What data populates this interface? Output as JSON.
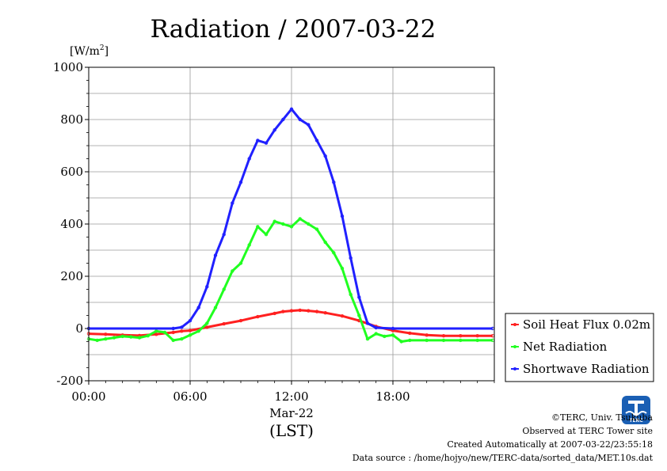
{
  "chart_data": {
    "type": "line",
    "title": "Radiation / 2007-03-22",
    "ylabel": "[W/m2]",
    "ylabel_base": "[W/m",
    "ylabel_sup": "2",
    "ylabel_close": "]",
    "xlabel": "(LST)",
    "date_label": "Mar-22",
    "ylim": [
      -200,
      1000
    ],
    "yticks": [
      -200,
      0,
      200,
      400,
      600,
      800,
      1000
    ],
    "xlim_hours": [
      0,
      24
    ],
    "xticks": [
      {
        "hour": 0,
        "label": "00:00"
      },
      {
        "hour": 6,
        "label": "06:00"
      },
      {
        "hour": 12,
        "label": "12:00"
      },
      {
        "hour": 18,
        "label": "18:00"
      }
    ],
    "grid": true,
    "legend_position": "right",
    "series": [
      {
        "name": "Soil Heat Flux 0.02m",
        "color": "#ff2020",
        "points": [
          [
            0,
            -20
          ],
          [
            1,
            -22
          ],
          [
            2,
            -25
          ],
          [
            3,
            -27
          ],
          [
            4,
            -22
          ],
          [
            5,
            -15
          ],
          [
            5.5,
            -10
          ],
          [
            6,
            -8
          ],
          [
            7,
            5
          ],
          [
            8,
            18
          ],
          [
            9,
            30
          ],
          [
            10,
            45
          ],
          [
            11,
            58
          ],
          [
            11.5,
            65
          ],
          [
            12,
            68
          ],
          [
            12.5,
            70
          ],
          [
            13,
            68
          ],
          [
            13.5,
            65
          ],
          [
            14,
            60
          ],
          [
            15,
            48
          ],
          [
            16,
            30
          ],
          [
            17,
            8
          ],
          [
            18,
            -8
          ],
          [
            19,
            -18
          ],
          [
            20,
            -25
          ],
          [
            21,
            -28
          ],
          [
            22,
            -28
          ],
          [
            23,
            -28
          ],
          [
            23.9,
            -28
          ]
        ]
      },
      {
        "name": "Net Radiation",
        "color": "#20ff20",
        "points": [
          [
            0,
            -40
          ],
          [
            0.5,
            -45
          ],
          [
            1,
            -40
          ],
          [
            1.5,
            -35
          ],
          [
            2,
            -30
          ],
          [
            2.5,
            -32
          ],
          [
            3,
            -35
          ],
          [
            3.5,
            -28
          ],
          [
            4,
            -10
          ],
          [
            4.5,
            -15
          ],
          [
            5,
            -45
          ],
          [
            5.5,
            -40
          ],
          [
            6,
            -25
          ],
          [
            6.5,
            -10
          ],
          [
            7,
            20
          ],
          [
            7.5,
            80
          ],
          [
            8,
            150
          ],
          [
            8.5,
            220
          ],
          [
            9,
            250
          ],
          [
            9.5,
            320
          ],
          [
            10,
            390
          ],
          [
            10.5,
            360
          ],
          [
            11,
            410
          ],
          [
            11.5,
            400
          ],
          [
            12,
            390
          ],
          [
            12.5,
            420
          ],
          [
            13,
            400
          ],
          [
            13.5,
            380
          ],
          [
            14,
            330
          ],
          [
            14.5,
            290
          ],
          [
            15,
            230
          ],
          [
            15.5,
            130
          ],
          [
            16,
            50
          ],
          [
            16.5,
            -40
          ],
          [
            17,
            -20
          ],
          [
            17.5,
            -30
          ],
          [
            18,
            -25
          ],
          [
            18.5,
            -50
          ],
          [
            19,
            -45
          ],
          [
            20,
            -45
          ],
          [
            21,
            -45
          ],
          [
            22,
            -45
          ],
          [
            23,
            -45
          ],
          [
            23.9,
            -45
          ]
        ]
      },
      {
        "name": "Shortwave Radiation",
        "color": "#2020ff",
        "points": [
          [
            0,
            0
          ],
          [
            5,
            0
          ],
          [
            5.5,
            5
          ],
          [
            6,
            30
          ],
          [
            6.5,
            80
          ],
          [
            7,
            160
          ],
          [
            7.5,
            280
          ],
          [
            8,
            360
          ],
          [
            8.5,
            480
          ],
          [
            9,
            560
          ],
          [
            9.5,
            650
          ],
          [
            10,
            720
          ],
          [
            10.5,
            710
          ],
          [
            11,
            760
          ],
          [
            11.5,
            800
          ],
          [
            12,
            840
          ],
          [
            12.5,
            800
          ],
          [
            13,
            780
          ],
          [
            13.5,
            720
          ],
          [
            14,
            660
          ],
          [
            14.5,
            560
          ],
          [
            15,
            430
          ],
          [
            15.5,
            270
          ],
          [
            16,
            120
          ],
          [
            16.5,
            20
          ],
          [
            17,
            3
          ],
          [
            18,
            0
          ],
          [
            23.9,
            0
          ]
        ]
      }
    ]
  },
  "footer": {
    "copyright": "©TERC, Univ. Tsukuba",
    "observed": "Observed at TERC Tower site",
    "created": "Created Automatically at 2007-03-22/23:55:18",
    "source": "Data source : /home/hojyo/new/TERC-data/sorted_data/MET.10s.dat",
    "logo_text": "TERC"
  }
}
